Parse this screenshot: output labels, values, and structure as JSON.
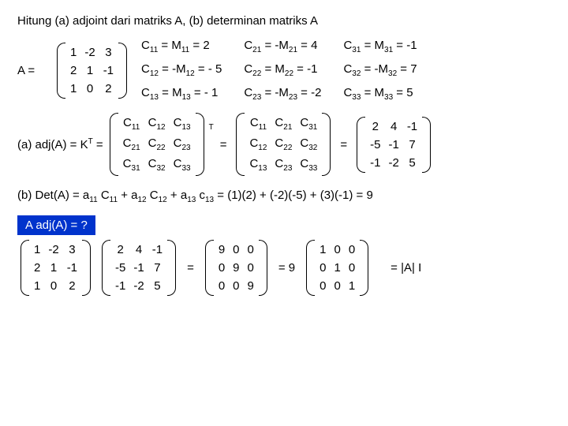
{
  "title": "Hitung (a) adjoint dari matriks A, (b) determinan  matriks A",
  "A_label": "A =",
  "A": [
    [
      "1",
      "-2",
      "3"
    ],
    [
      "2",
      "1",
      "-1"
    ],
    [
      "1",
      "0",
      "2"
    ]
  ],
  "cofactors": {
    "c11": "C",
    "s11": "11",
    "m11": "M",
    "r11": " = 2",
    "e11": " = ",
    "c21": "C",
    "s21": "21",
    "m21": "M",
    "r21": " = 4",
    "e21": " = -",
    "neg21": true,
    "c31": "C",
    "s31": "31",
    "m31": "M",
    "r31": " = -1",
    "e31": " = ",
    "c12": "C",
    "s12": "12",
    "m12": "M",
    "r12": " = - 5",
    "e12": " = -",
    "c22": "C",
    "s22": "22",
    "m22": "M",
    "r22": " = -1",
    "e22": " = ",
    "c32": "C",
    "s32": "32",
    "m32": "M",
    "r32": " = 7",
    "e32": " = -",
    "c13": "C",
    "s13": "13",
    "m13": "M",
    "r13": " = - 1",
    "e13": " = ",
    "c23": "C",
    "s23": "23",
    "m23": "M",
    "r23": " = -2",
    "e23": " = -",
    "c33": "C",
    "s33": "33",
    "m33": "M",
    "r33": " = 5",
    "e33": " = "
  },
  "adj_label_a": "(a)  adj(A) = K",
  "adj_label_T": "T",
  "adj_eq": " = ",
  "Ksym": [
    [
      "C",
      "11",
      "C",
      "12",
      "C",
      "13"
    ],
    [
      "C",
      "21",
      "C",
      "22",
      "C",
      "23"
    ],
    [
      "C",
      "31",
      "C",
      "32",
      "C",
      "33"
    ]
  ],
  "Ktrans": [
    [
      "C",
      "11",
      "C",
      "21",
      "C",
      "31"
    ],
    [
      "C",
      "12",
      "C",
      "22",
      "C",
      "32"
    ],
    [
      "C",
      "13",
      "C",
      "23",
      "C",
      "33"
    ]
  ],
  "adjA": [
    [
      "2",
      "4",
      "-1"
    ],
    [
      "-5",
      "-1",
      "7"
    ],
    [
      "-1",
      "-2",
      "5"
    ]
  ],
  "det_line_prefix": "(b)  Det(A) = a",
  "det_terms": {
    "a11": "11",
    "c11": "11",
    "a12": "12",
    "c12": "12",
    "a13": "13",
    "c13": "13"
  },
  "det_text_1": " C",
  "det_text_2": " + a",
  "det_text_3": " c",
  "det_eval": " = (1)(2) + (-2)(-5) + (3)(-1) = 9",
  "bluebox": "A  adj(A) = ?",
  "prod9": [
    [
      "9",
      "0",
      "0"
    ],
    [
      "0",
      "9",
      "0"
    ],
    [
      "0",
      "0",
      "9"
    ]
  ],
  "nine": "=  9",
  "Iden": [
    [
      "1",
      "0",
      "0"
    ],
    [
      "0",
      "1",
      "0"
    ],
    [
      "0",
      "0",
      "1"
    ]
  ],
  "final": "= |A|  I",
  "eq": "="
}
